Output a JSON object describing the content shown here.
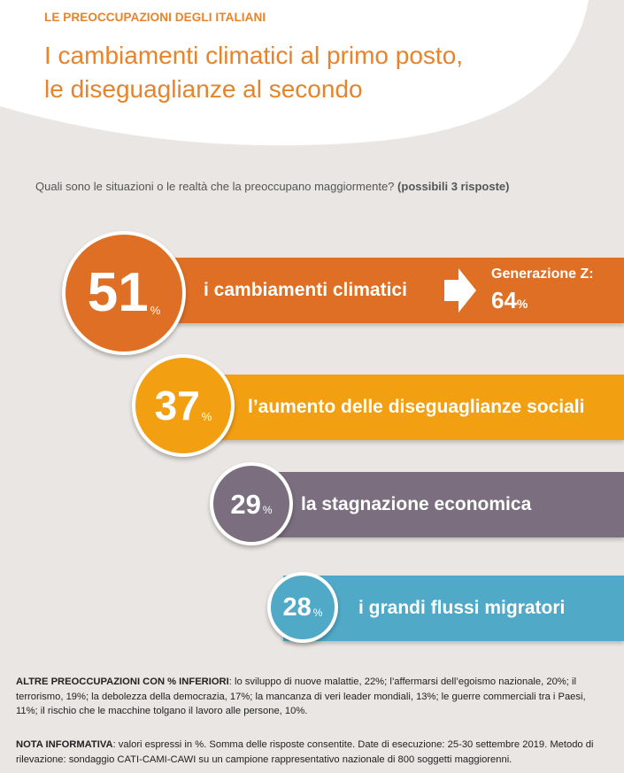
{
  "header": {
    "kicker": "LE PREOCCUPAZIONI DEGLI ITALIANI",
    "title_line1": "I cambiamenti climatici al primo posto,",
    "title_line2": "le diseguaglianze al secondo"
  },
  "question": {
    "text": "Quali sono le situazioni o le realtà che la preoccupano maggiormente?",
    "note": "(possibili 3 risposte)"
  },
  "chart_data": {
    "type": "bar",
    "unit": "%",
    "categories": [
      "i cambiamenti climatici",
      "l’aumento delle diseguaglianze sociali",
      "la stagnazione economica",
      "i grandi flussi migratori"
    ],
    "values": [
      51,
      37,
      29,
      28
    ],
    "value_labels": [
      "51",
      "37",
      "29",
      "28"
    ],
    "colors": [
      "#de6f24",
      "#f29f12",
      "#7a6e7f",
      "#4fa9c7"
    ],
    "genz": {
      "label": "Generazione Z:",
      "value": "64",
      "unit": "%"
    }
  },
  "footer": {
    "other_title": "ALTRE PREOCCUPAZIONI CON % INFERIORI",
    "other_text": ": lo sviluppo di nuove malattie, 22%; l’affermarsi dell’egoismo nazionale, 20%; il terrorismo, 19%; la debolezza della democrazia, 17%; la mancanza di veri leader mondiali, 13%; le guerre commerciali tra i Paesi, 11%; il rischio che le macchine tolgano il lavoro alle persone, 10%.",
    "note_title": "NOTA INFORMATIVA",
    "note_text": ": valori espressi in %. Somma delle risposte consentite. Date di esecuzione: 25-30 settembre 2019. Metodo di rilevazione: sondaggio CATI-CAMI-CAWI su un campione rappresentativo nazionale di 800 soggetti maggiorenni."
  }
}
